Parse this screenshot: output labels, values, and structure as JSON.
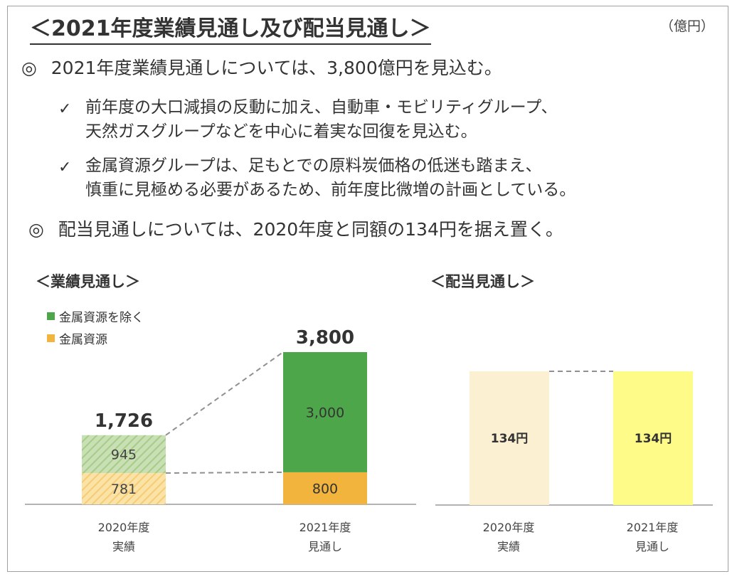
{
  "header": {
    "title": "＜2021年度業績見通し及び配当見通し＞",
    "unit": "（億円）"
  },
  "bullets": {
    "first": {
      "mark": "◎",
      "text": "2021年度業績見通しについては、3,800億円を見込む。",
      "checks": [
        {
          "mark": "✓",
          "line1": "前年度の大口減損の反動に加え、自動車・モビリティグループ、",
          "line2": "天然ガスグループなどを中心に着実な回復を見込む。"
        },
        {
          "mark": "✓",
          "line1": "金属資源グループは、足もとでの原料炭価格の低迷も踏まえ、",
          "line2": "慎重に見極める必要があるため、前年度比微増の計画としている。"
        }
      ]
    },
    "second": {
      "mark": "◎",
      "text": "配当見通しについては、2020年度と同額の134円を据え置く。"
    }
  },
  "earnings_section": {
    "title": "＜業績見通し＞"
  },
  "dividend_section": {
    "title": "＜配当見通し＞"
  },
  "chart_data": [
    {
      "type": "bar",
      "stacked": true,
      "title": "＜業績見通し＞",
      "categories": [
        {
          "line1": "2020年度",
          "line2": "実績"
        },
        {
          "line1": "2021年度",
          "line2": "見通し"
        }
      ],
      "series": [
        {
          "name": "金属資源",
          "color": "#f2b43c",
          "values": [
            781,
            800
          ],
          "labels": [
            "781",
            "800"
          ]
        },
        {
          "name": "金属資源を除く",
          "color": "#4ea64a",
          "values": [
            945,
            3000
          ],
          "labels": [
            "945",
            "3,000"
          ]
        }
      ],
      "totals": [
        "1,726",
        "3,800"
      ],
      "legend": [
        {
          "name": "金属資源を除く",
          "color": "#4ea64a"
        },
        {
          "name": "金属資源",
          "color": "#f2b43c"
        }
      ],
      "ylim": [
        0,
        3800
      ]
    },
    {
      "type": "bar",
      "title": "＜配当見通し＞",
      "categories": [
        {
          "line1": "2020年度",
          "line2": "実績"
        },
        {
          "line1": "2021年度",
          "line2": "見通し"
        }
      ],
      "values": [
        134,
        134
      ],
      "labels": [
        "134円",
        "134円"
      ],
      "colors": [
        "#fbf0d2",
        "#fefb88"
      ],
      "ylim": [
        0,
        134
      ]
    }
  ]
}
